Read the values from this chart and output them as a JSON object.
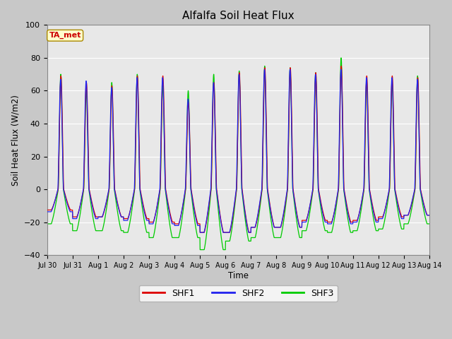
{
  "title": "Alfalfa Soil Heat Flux",
  "ylabel": "Soil Heat Flux (W/m2)",
  "xlabel": "Time",
  "ylim": [
    -40,
    100
  ],
  "yticks": [
    -40,
    -20,
    0,
    20,
    40,
    60,
    80,
    100
  ],
  "fig_bg_color": "#c8c8c8",
  "plot_bg_color": "#e8e8e8",
  "grid_color": "#ffffff",
  "ta_met_label": "TA_met",
  "legend_entries": [
    "SHF1",
    "SHF2",
    "SHF3"
  ],
  "line_colors": [
    "#dd0000",
    "#2222ee",
    "#00cc00"
  ],
  "x_tick_labels": [
    "Jul 30",
    "Jul 31",
    "Aug 1",
    "Aug 2",
    "Aug 3",
    "Aug 4",
    "Aug 5",
    "Aug 6",
    "Aug 7",
    "Aug 8",
    "Aug 9",
    "Aug 10",
    "Aug 11",
    "Aug 12",
    "Aug 13",
    "Aug 14"
  ],
  "days_total": 15,
  "day_peaks_shf1": [
    69,
    65,
    63,
    69,
    69,
    53,
    65,
    71,
    74,
    74,
    71,
    75,
    69,
    69,
    68
  ],
  "day_peaks_shf2": [
    67,
    66,
    62,
    68,
    68,
    55,
    65,
    70,
    73,
    73,
    70,
    73,
    68,
    68,
    67
  ],
  "day_peaks_shf3": [
    70,
    60,
    65,
    70,
    63,
    60,
    70,
    72,
    75,
    74,
    71,
    80,
    66,
    65,
    69
  ],
  "day_troughs_shf1": [
    -12,
    -16,
    -16,
    -17,
    -19,
    -20,
    -25,
    -25,
    -22,
    -22,
    -18,
    -19,
    -18,
    -16,
    -15
  ],
  "day_troughs_shf2": [
    -13,
    -17,
    -16,
    -18,
    -20,
    -21,
    -25,
    -25,
    -22,
    -22,
    -19,
    -20,
    -19,
    -17,
    -15
  ],
  "day_troughs_shf3": [
    -20,
    -24,
    -24,
    -25,
    -28,
    -28,
    -35,
    -30,
    -28,
    -28,
    -24,
    -25,
    -24,
    -23,
    -20
  ]
}
